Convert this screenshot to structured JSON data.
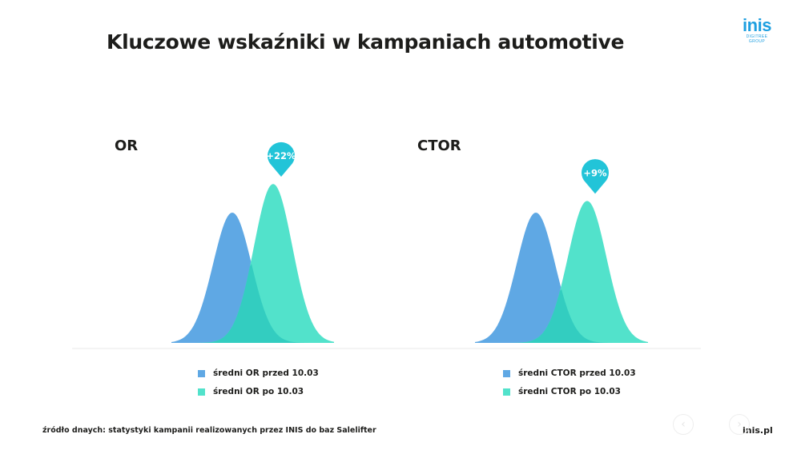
{
  "page": {
    "title": "Kluczowe wskaźniki w kampaniach automotive",
    "logo_word": "inis",
    "logo_sub": "DIGITREE GROUP",
    "source": "źródło dnaych: statystyki kampanii realizowanych przez INIS do baz Salelifter",
    "site": "inis.pl",
    "nav_prev": "‹",
    "nav_next": "›"
  },
  "colors": {
    "before": "#5fa8e4",
    "after": "#52e2cb",
    "overlap": "#33cdc0",
    "badge": "#22c4d8"
  },
  "chart_data": [
    {
      "type": "area",
      "label": "OR",
      "badge": "+22%",
      "change_pct": 22,
      "series": [
        {
          "name": "średni OR przed 10.03",
          "peak": 1.0,
          "center": 290
        },
        {
          "name": "średni OR po 10.03",
          "peak": 1.22,
          "center": 341
        }
      ]
    },
    {
      "type": "area",
      "label": "CTOR",
      "badge": "+9%",
      "change_pct": 9,
      "series": [
        {
          "name": "średni CTOR przed 10.03",
          "peak": 1.0,
          "center": 669
        },
        {
          "name": "średni CTOR po 10.03",
          "peak": 1.09,
          "center": 733
        }
      ]
    }
  ]
}
